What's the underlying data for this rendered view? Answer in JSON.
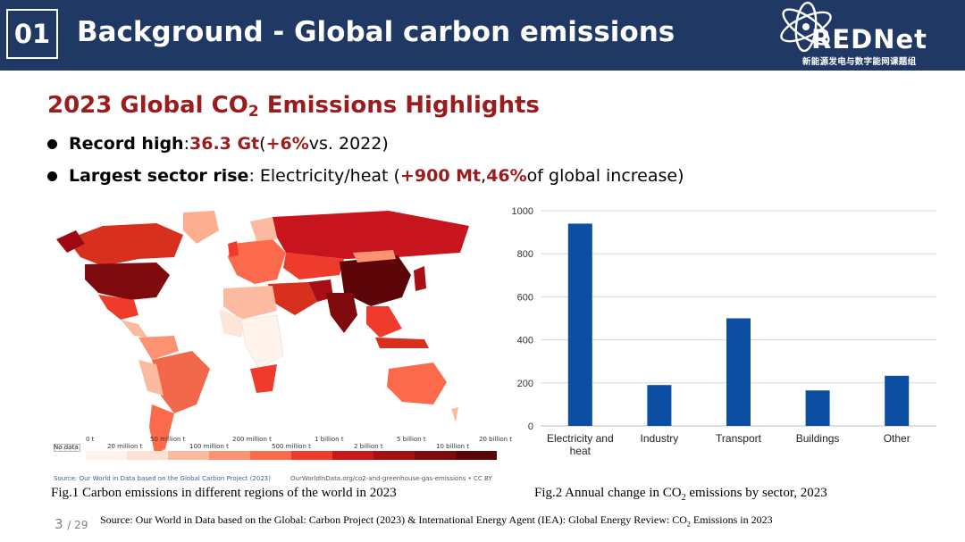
{
  "header": {
    "section_number": "01",
    "title": "Background - Global carbon emissions",
    "logo_text": "REDNet",
    "logo_subtitle": "新能源发电与数字能网课题组"
  },
  "subtitle": {
    "text_before": "2023 Global CO",
    "text_sub": "2",
    "text_after": " Emissions Highlights"
  },
  "bullets": [
    {
      "label": "Record high",
      "sep": ": ",
      "value": "36.3 Gt",
      "open": " (",
      "highlight": "+6%",
      "rest": " vs. 2022)"
    },
    {
      "label": "Largest sector rise",
      "sep": ": Electricity/heat (",
      "value": "+900 Mt",
      "comma": ", ",
      "highlight": "46%",
      "rest": " of global increase)"
    }
  ],
  "map": {
    "legend": {
      "no_data": "No data",
      "labels_top": [
        "0 t",
        "50 million t",
        "200 million t",
        "1 billion t",
        "5 billion t",
        "20 billion t"
      ],
      "labels_bottom": [
        "20 million t",
        "100 million t",
        "500 million t",
        "2 billion t",
        "10 billion t"
      ],
      "colors": [
        "#fff3ec",
        "#fde0d2",
        "#fcbba1",
        "#fc9272",
        "#fb6a4a",
        "#ef3b2c",
        "#cb181d",
        "#a50f15",
        "#7f0a0e",
        "#5c0509"
      ]
    },
    "source_left": "Source: Our World in Data based on the Global Carbon Project (2023)",
    "source_right": "OurWorldInData.org/co2-and-greenhouse-gas-emissions • CC BY"
  },
  "captions": {
    "fig1": "Fig.1 Carbon emissions in different regions of the world in 2023",
    "fig2_before": "Fig.2 Annual change in CO",
    "fig2_sub": "2",
    "fig2_after": " emissions by sector, 2023"
  },
  "page": {
    "current": "3",
    "total": "/ 29"
  },
  "source": {
    "before": "Source: Our World in Data based on the Global: Carbon Project (2023) & International Energy Agent (IEA): Global Energy Review: CO",
    "sub": "2",
    "after": " Emissions in 2023"
  },
  "chart_data": {
    "type": "bar",
    "categories": [
      "Electricity and heat",
      "Industry",
      "Transport",
      "Buildings",
      "Other"
    ],
    "category_lines": [
      [
        "Electricity and",
        "heat"
      ],
      [
        "Industry"
      ],
      [
        "Transport"
      ],
      [
        "Buildings"
      ],
      [
        "Other"
      ]
    ],
    "values": [
      940,
      190,
      500,
      165,
      233
    ],
    "ylim": [
      0,
      1000
    ],
    "yticks": [
      "0",
      "200",
      "400",
      "600",
      "800",
      "1000"
    ],
    "title": "",
    "xlabel": "",
    "ylabel": "",
    "grid": true,
    "bar_color": "#0b4ea2"
  }
}
